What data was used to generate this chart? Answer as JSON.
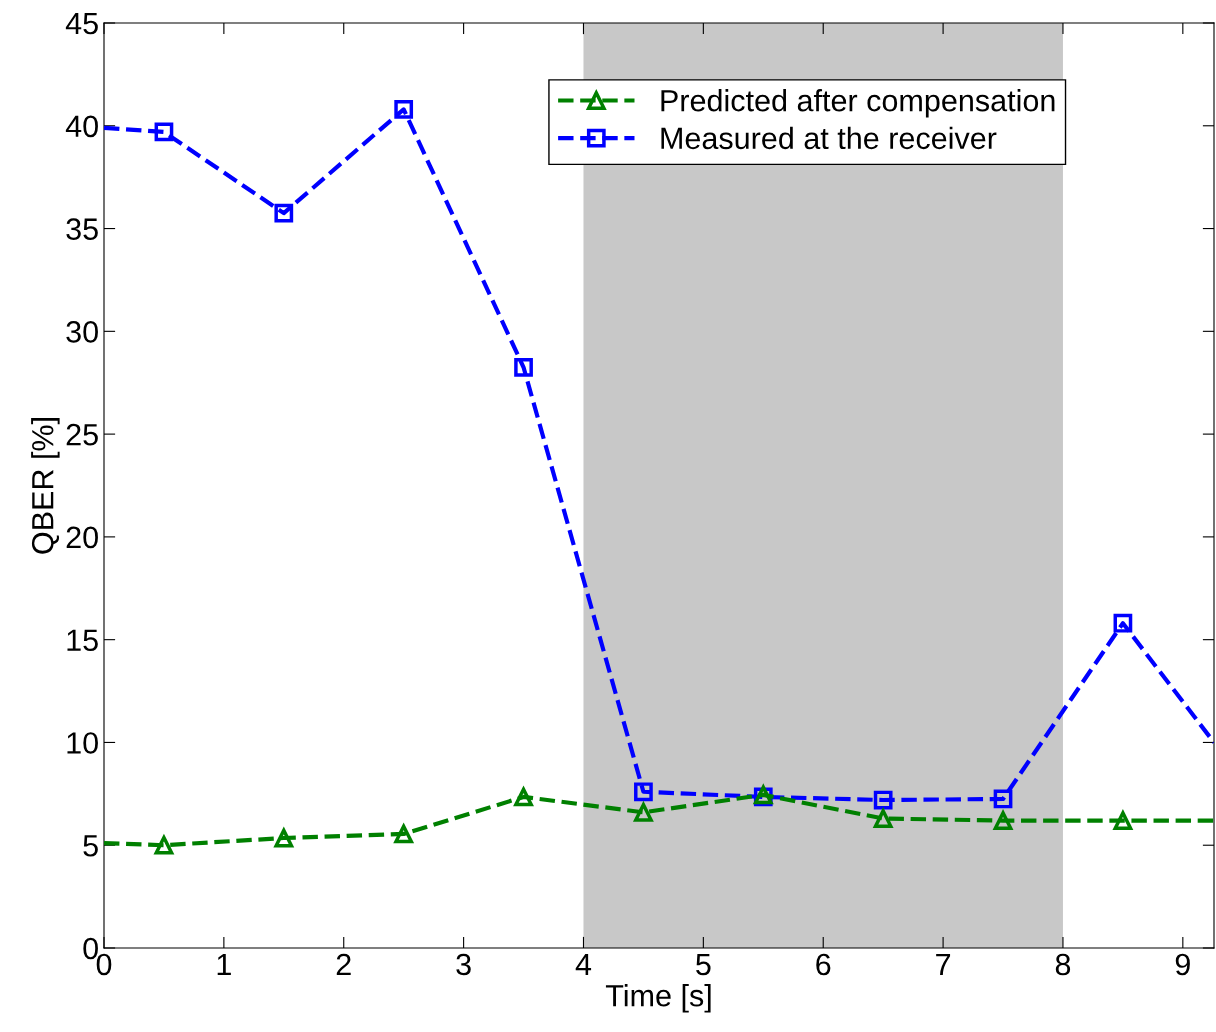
{
  "chart_data": {
    "type": "line",
    "xlabel": "Time [s]",
    "ylabel": "QBER [%]",
    "xlim": [
      0,
      9.26
    ],
    "ylim": [
      0,
      45
    ],
    "xticks": [
      0,
      1,
      2,
      3,
      4,
      5,
      6,
      7,
      8,
      9
    ],
    "yticks": [
      0,
      5,
      10,
      15,
      20,
      25,
      30,
      35,
      40,
      45
    ],
    "grid": false,
    "legend": "top right",
    "line_style": "dashed",
    "bands": [
      {
        "axis": "x",
        "from": 4,
        "to": 8,
        "color": "#c8c8c8"
      }
    ],
    "series": [
      {
        "name": "Predicted after compensation",
        "color": "#008000",
        "marker": "triangle",
        "x": [
          0,
          0.5,
          1.5,
          2.5,
          3.5,
          4.5,
          5.5,
          6.5,
          7.5,
          8.5,
          9.26
        ],
        "values": [
          5.1,
          5.0,
          5.35,
          5.55,
          7.35,
          6.6,
          7.45,
          6.3,
          6.2,
          6.2,
          6.2
        ]
      },
      {
        "name": "Measured at the receiver",
        "color": "#0000ff",
        "marker": "square",
        "x": [
          0,
          0.5,
          1.5,
          2.5,
          3.5,
          4.5,
          5.5,
          6.5,
          7.5,
          8.5,
          9.26
        ],
        "values": [
          39.9,
          39.7,
          35.75,
          40.8,
          28.25,
          7.6,
          7.35,
          7.2,
          7.25,
          15.8,
          10.0
        ]
      }
    ]
  }
}
